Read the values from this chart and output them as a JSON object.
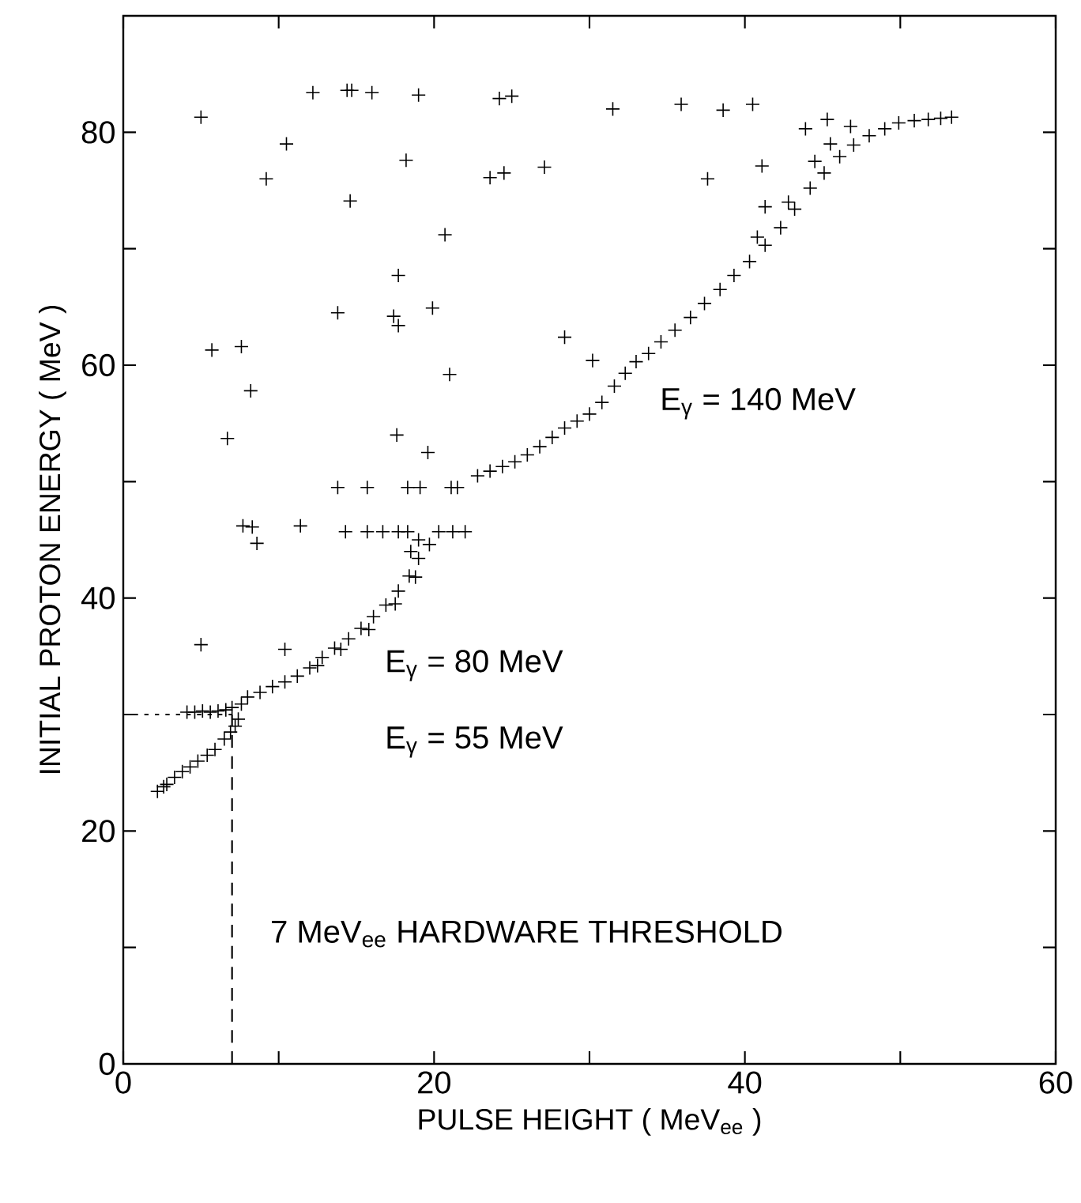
{
  "chart_data": {
    "type": "scatter",
    "xlabel": "PULSE HEIGHT ( MeV$_{ee}$ )",
    "ylabel": "INITIAL PROTON ENERGY ( MeV )",
    "xlim": [
      0,
      60
    ],
    "ylim": [
      0,
      90
    ],
    "xticks": [
      0,
      {
        "value": 10,
        "label": null
      },
      20,
      {
        "value": 30,
        "label": null
      },
      40,
      {
        "value": 50,
        "label": null
      },
      60
    ],
    "yticks": [
      0,
      {
        "value": 10,
        "label": null
      },
      20,
      {
        "value": 30,
        "label": null
      },
      40,
      {
        "value": 50,
        "label": null
      },
      60,
      {
        "value": 70,
        "label": null
      },
      80
    ],
    "marker": "cross",
    "color": "#000000",
    "x": [
      5.0,
      5.7,
      7.6,
      8.2,
      6.7,
      9.2,
      10.5,
      12.2,
      14.4,
      14.7,
      16.0,
      19.0,
      14.6,
      13.8,
      17.7,
      17.4,
      17.7,
      18.2,
      20.7,
      19.9,
      21.0,
      17.6,
      19.6,
      23.6,
      24.5,
      27.1,
      24.2,
      25.0,
      28.4,
      30.2,
      31.5,
      35.9,
      38.6,
      40.5,
      37.6,
      41.1,
      41.3,
      43.9,
      5.0,
      10.4,
      8.3,
      8.6,
      7.7,
      11.4,
      14.3,
      15.7,
      16.7,
      17.7,
      18.3,
      21.2,
      22.0,
      13.8,
      15.7,
      18.3,
      19.1,
      21.1,
      21.5,
      2.2,
      2.6,
      2.8,
      3.3,
      3.8,
      4.3,
      4.8,
      5.4,
      5.9,
      6.5,
      6.9,
      7.2,
      7.4,
      4.1,
      4.6,
      5.1,
      5.6,
      6.1,
      6.6,
      7.0,
      7.6,
      8.0,
      8.8,
      9.6,
      10.4,
      11.2,
      12.0,
      12.8,
      13.6,
      14.5,
      15.3,
      16.1,
      16.9,
      17.7,
      18.4,
      19.0,
      19.7,
      20.3,
      12.5,
      14.0,
      15.8,
      17.5,
      18.8,
      19.0,
      18.5,
      22.8,
      23.6,
      24.4,
      25.2,
      26.0,
      26.8,
      27.6,
      28.4,
      29.2,
      30.0,
      30.8,
      31.6,
      32.3,
      33.0,
      33.8,
      34.6,
      35.5,
      36.5,
      37.4,
      38.4,
      39.3,
      40.3,
      41.3,
      42.3,
      43.2,
      44.2,
      45.1,
      46.1,
      47.0,
      48.0,
      49.0,
      49.9,
      50.9,
      51.8,
      52.6,
      53.3,
      44.5,
      45.3,
      46.8,
      45.5,
      42.8,
      40.8
    ],
    "values": [
      81.3,
      61.3,
      61.6,
      57.8,
      53.7,
      76.0,
      79.0,
      83.4,
      83.6,
      83.6,
      83.4,
      83.2,
      74.1,
      64.5,
      67.7,
      64.2,
      63.4,
      77.6,
      71.2,
      64.9,
      59.2,
      54.0,
      52.5,
      76.1,
      76.5,
      77.0,
      82.9,
      83.1,
      62.4,
      60.4,
      82.0,
      82.4,
      81.9,
      82.4,
      76.0,
      77.1,
      73.6,
      80.3,
      36.0,
      35.6,
      46.1,
      44.7,
      46.2,
      46.2,
      45.7,
      45.7,
      45.7,
      45.7,
      45.7,
      45.7,
      45.7,
      49.5,
      49.5,
      49.5,
      49.5,
      49.5,
      49.5,
      23.4,
      23.8,
      24.0,
      24.6,
      25.1,
      25.5,
      26.0,
      26.5,
      27.0,
      27.9,
      28.5,
      29.0,
      29.6,
      30.2,
      30.2,
      30.3,
      30.2,
      30.3,
      30.4,
      30.6,
      30.9,
      31.5,
      31.9,
      32.4,
      32.8,
      33.3,
      34.0,
      34.9,
      35.7,
      36.5,
      37.4,
      38.4,
      39.4,
      40.6,
      41.9,
      43.4,
      44.6,
      45.7,
      34.2,
      35.6,
      37.3,
      39.5,
      41.8,
      45.0,
      44.0,
      50.5,
      50.9,
      51.3,
      51.7,
      52.3,
      53.0,
      53.8,
      54.6,
      55.2,
      55.8,
      56.8,
      58.2,
      59.3,
      60.3,
      61.0,
      62.0,
      63.0,
      64.1,
      65.3,
      66.5,
      67.7,
      68.9,
      70.3,
      71.8,
      73.4,
      75.2,
      76.5,
      77.9,
      78.9,
      79.7,
      80.3,
      80.8,
      81.0,
      81.1,
      81.2,
      81.3,
      77.5,
      81.1,
      80.5,
      79.0,
      74.0,
      71.0
    ],
    "ref_lines": [
      {
        "axis": "x",
        "value": 7,
        "line_style": "dashed"
      },
      {
        "axis": "y",
        "value": 30,
        "line_style": "dotted"
      }
    ],
    "annotations": [
      "E$_{γ}$ = 140 MeV",
      "E$_{γ}$ = 80 MeV",
      "E$_{γ}$ = 55 MeV",
      "7 MeV$_{ee}$  HARDWARE THRESHOLD"
    ]
  }
}
